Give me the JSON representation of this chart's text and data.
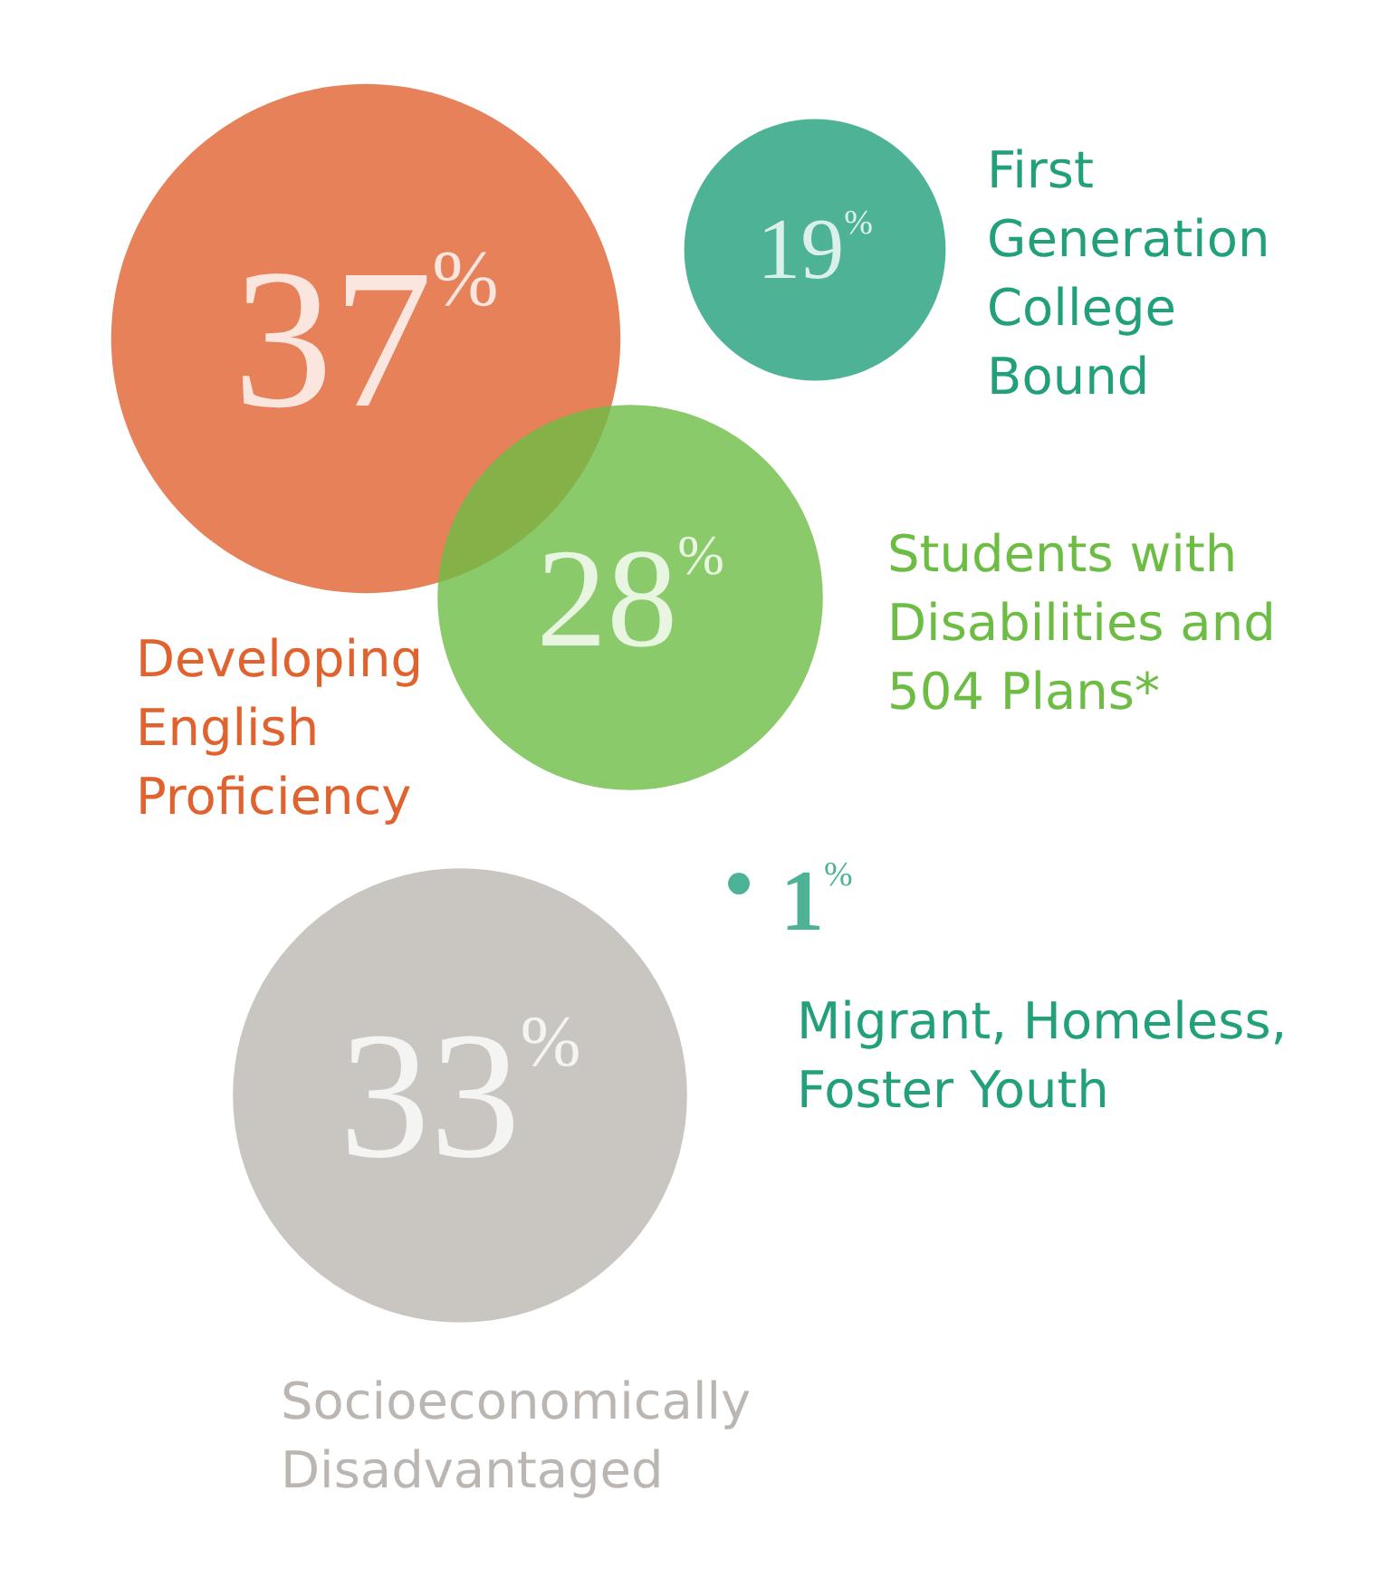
{
  "chart_data": {
    "type": "other",
    "categories": [
      "Developing English Proficiency",
      "First Generation College Bound",
      "Students with Disabilities and 504 Plans*",
      "Socioeconomically Disadvantaged",
      "Migrant, Homeless, Foster Youth"
    ],
    "values": [
      37,
      19,
      28,
      33,
      1
    ],
    "value_labels": [
      "37%",
      "19%",
      "28%",
      "33%",
      "1%"
    ],
    "colors": [
      "#e0622f",
      "#22a07c",
      "#6dbd45",
      "#bbb6b1",
      "#22a07c"
    ]
  }
}
